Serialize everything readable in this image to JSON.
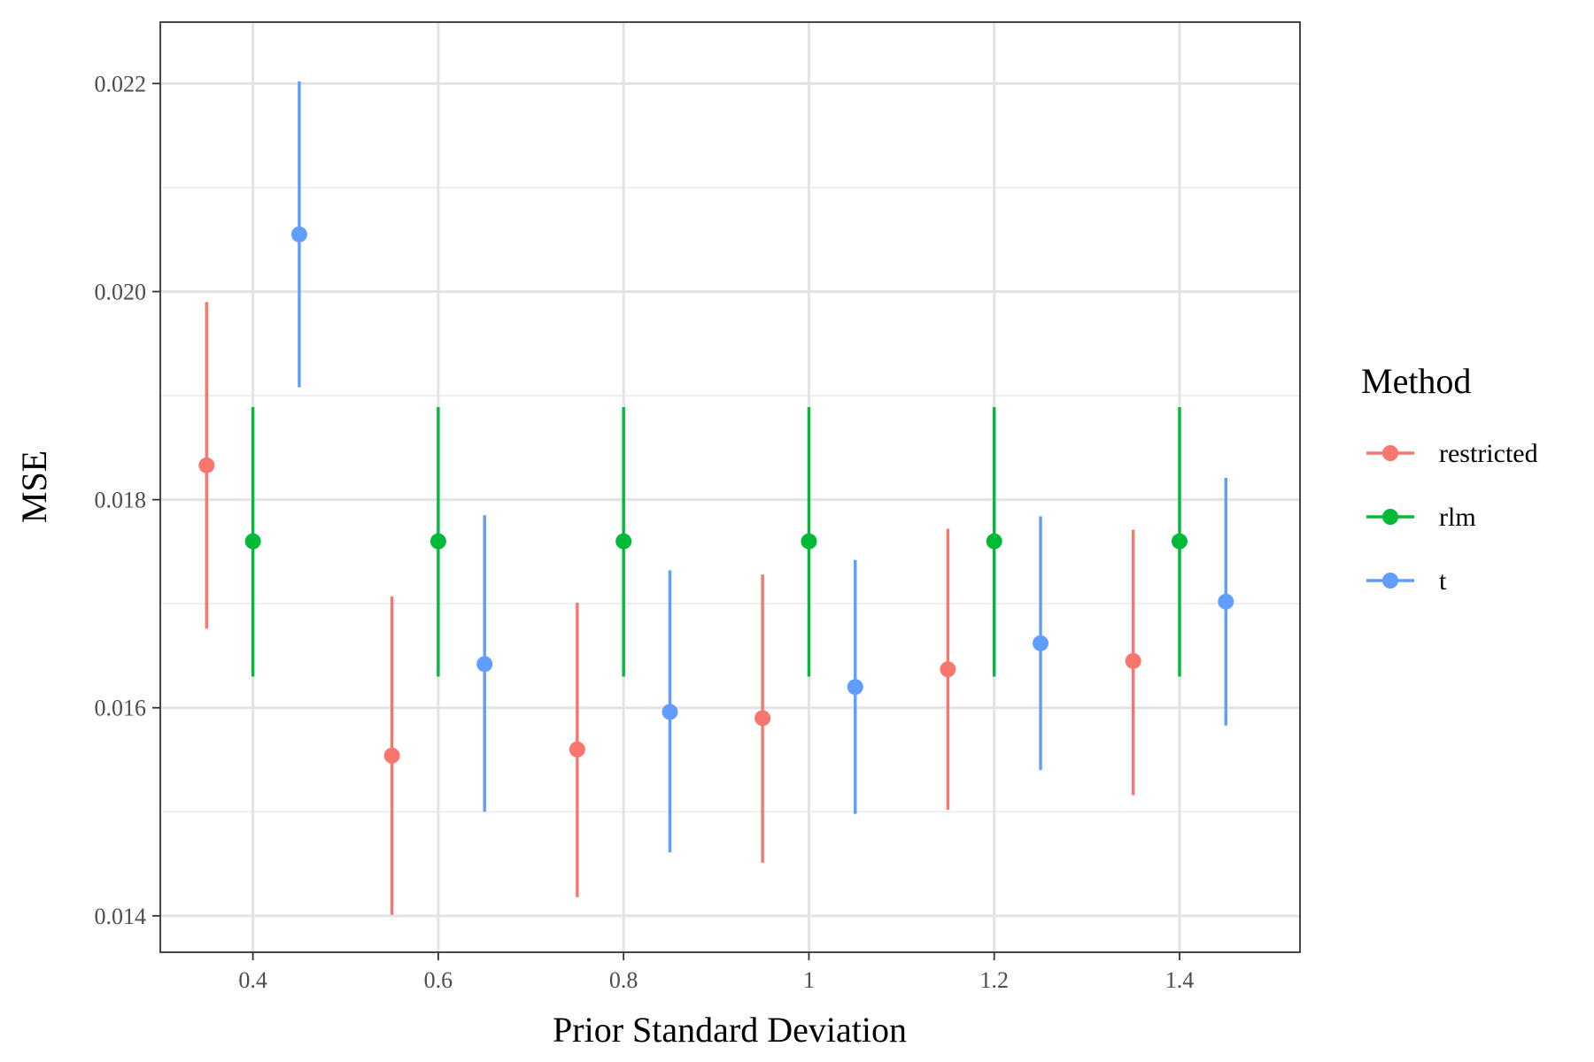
{
  "chart_data": {
    "type": "scatter",
    "style": "pointrange",
    "xlabel": "Prior Standard Deviation",
    "ylabel": "MSE",
    "xlim": [
      0.3,
      1.53
    ],
    "ylim": [
      0.01365,
      0.02259
    ],
    "x_ticks": [
      0.4,
      0.6,
      0.8,
      1.0,
      1.2,
      1.4
    ],
    "x_tick_labels": [
      "0.4",
      "0.6",
      "0.8",
      "1",
      "1.2",
      "1.4"
    ],
    "y_ticks": [
      0.014,
      0.016,
      0.018,
      0.02,
      0.022
    ],
    "y_tick_labels": [
      "0.014",
      "0.016",
      "0.018",
      "0.020",
      "0.022"
    ],
    "y_minor_ticks": [
      0.015,
      0.017,
      0.019,
      0.021
    ],
    "grid": true,
    "legend": {
      "title": "Method",
      "position": "right"
    },
    "series": [
      {
        "name": "restricted",
        "color": "#F8766D",
        "x": [
          0.35,
          0.55,
          0.75,
          0.95,
          1.15,
          1.35
        ],
        "y": [
          0.01833,
          0.01554,
          0.0156,
          0.0159,
          0.01637,
          0.01645
        ],
        "lower": [
          0.01676,
          0.01401,
          0.01418,
          0.01451,
          0.01502,
          0.01516
        ],
        "upper": [
          0.0199,
          0.01707,
          0.01701,
          0.01728,
          0.01772,
          0.01771
        ]
      },
      {
        "name": "rlm",
        "color": "#00BA38",
        "x": [
          0.4,
          0.6,
          0.8,
          1.0,
          1.2,
          1.4
        ],
        "y": [
          0.0176,
          0.0176,
          0.0176,
          0.0176,
          0.0176,
          0.0176
        ],
        "lower": [
          0.0163,
          0.0163,
          0.0163,
          0.0163,
          0.0163,
          0.0163
        ],
        "upper": [
          0.01889,
          0.01889,
          0.01889,
          0.01889,
          0.01889,
          0.01889
        ]
      },
      {
        "name": "t",
        "color": "#619CFF",
        "x": [
          0.45,
          0.65,
          0.85,
          1.05,
          1.25,
          1.45
        ],
        "y": [
          0.02055,
          0.01642,
          0.01596,
          0.0162,
          0.01662,
          0.01702
        ],
        "lower": [
          0.01908,
          0.015,
          0.01461,
          0.01498,
          0.0154,
          0.01583
        ],
        "upper": [
          0.02202,
          0.01785,
          0.01732,
          0.01742,
          0.01784,
          0.01821
        ]
      }
    ]
  }
}
